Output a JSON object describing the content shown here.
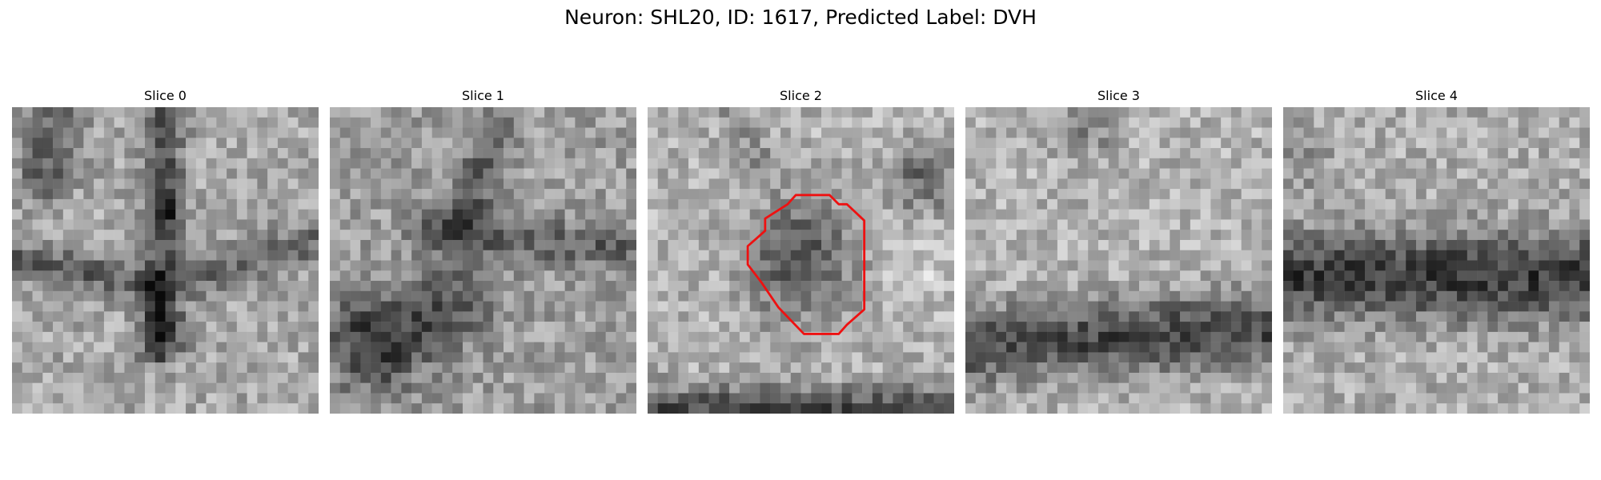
{
  "figure": {
    "title": "Neuron: SHL20, ID: 1617, Predicted Label: DVH",
    "grid_size": 30,
    "contour_color": "#ee1111",
    "slices": [
      {
        "label": "Slice 0"
      },
      {
        "label": "Slice 1"
      },
      {
        "label": "Slice 2",
        "has_contour": true
      },
      {
        "label": "Slice 3"
      },
      {
        "label": "Slice 4"
      }
    ]
  }
}
